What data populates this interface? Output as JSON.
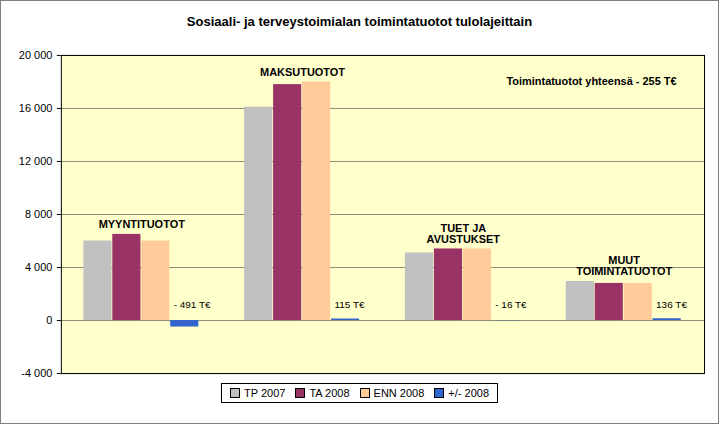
{
  "chart_data": {
    "type": "bar",
    "title": "Sosiaali- ja terveystoimialan toimintatuotot tulolajeittain",
    "categories": [
      "MYYNTITUOTOT",
      "MAKSUTUOTOT",
      "TUET JA AVUSTUKSET",
      "MUUT TOIMINTATUOTOT"
    ],
    "series": [
      {
        "name": "TP 2007",
        "color": "#c0c0c0",
        "values": [
          6000,
          16100,
          5100,
          2950
        ]
      },
      {
        "name": "TA 2008",
        "color": "#993366",
        "values": [
          6500,
          17800,
          5400,
          2800
        ]
      },
      {
        "name": "ENN 2008",
        "color": "#ffcc99",
        "values": [
          6000,
          18000,
          5400,
          2800
        ]
      },
      {
        "name": "+/- 2008",
        "color": "#3366cc",
        "values": [
          -491,
          115,
          -16,
          136
        ],
        "data_labels": true,
        "value_labels": [
          "- 491 T€",
          "115 T€",
          "- 16 T€",
          "136 T€"
        ]
      }
    ],
    "annotations": [
      "Toimintatuotot yhteensä - 255 T€"
    ],
    "ylim": [
      -4000,
      20000
    ],
    "yticks": [
      {
        "value": -4000,
        "label": "-4 000"
      },
      0,
      {
        "value": 4000,
        "label": "4 000"
      },
      {
        "value": 8000,
        "label": "8 000"
      },
      {
        "value": 12000,
        "label": "12 000"
      },
      {
        "value": 16000,
        "label": "16 000"
      },
      {
        "value": 20000,
        "label": "20 000"
      }
    ],
    "grid": true,
    "legend": "bottom",
    "tick_labels": "y"
  }
}
